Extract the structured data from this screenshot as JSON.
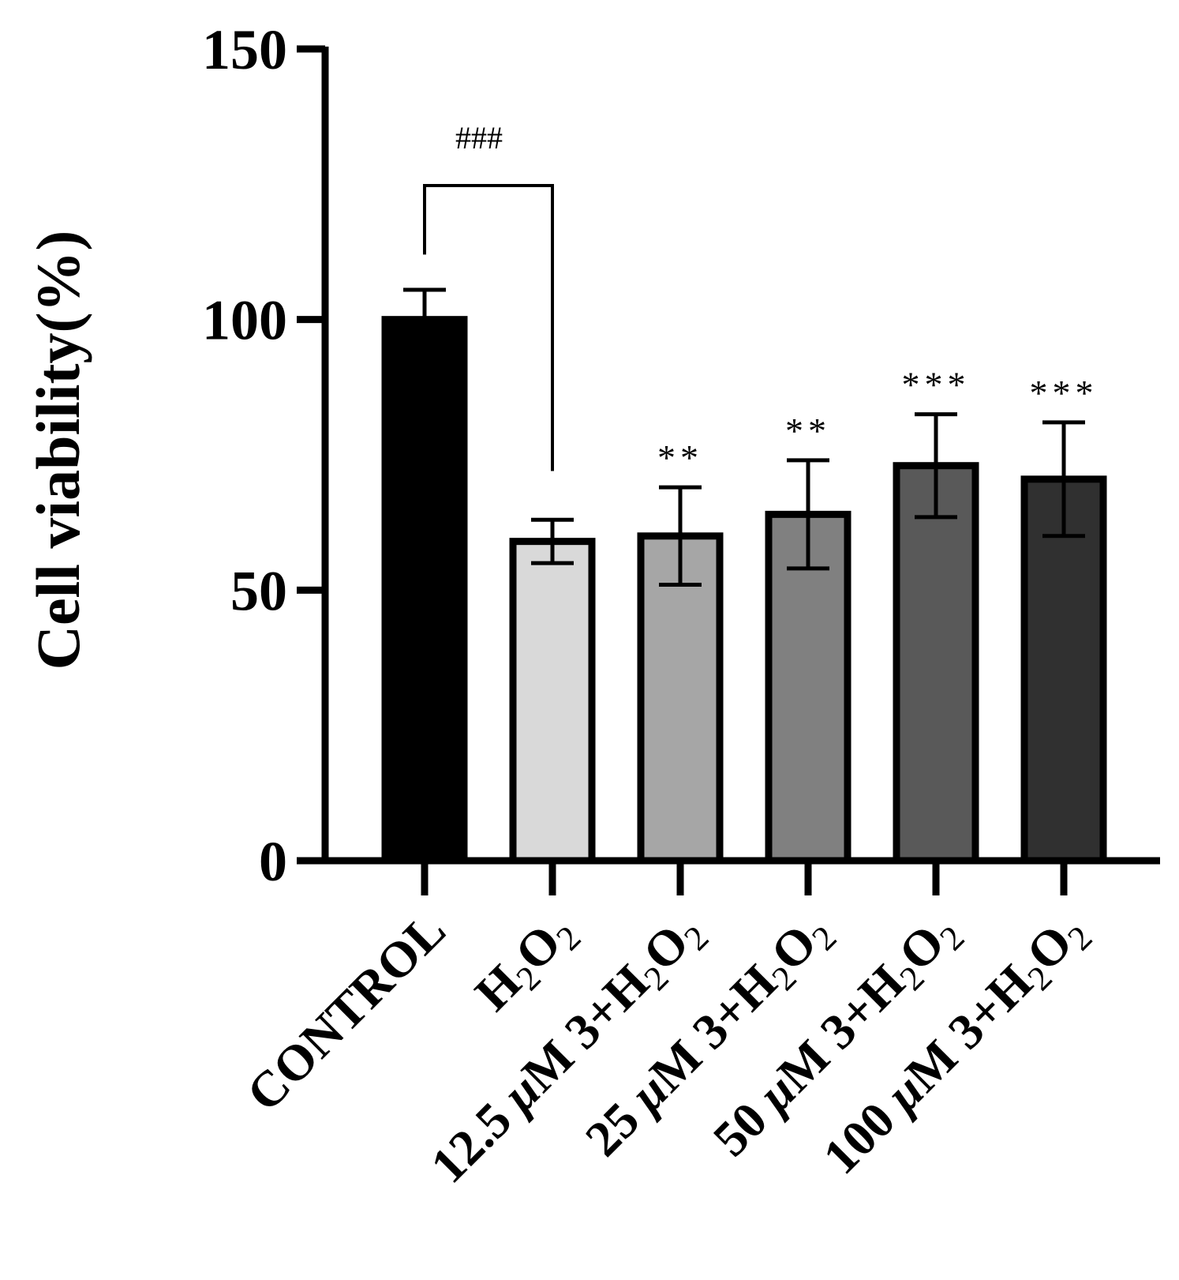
{
  "chart_data": {
    "type": "bar",
    "ylabel": "Cell viability(%)",
    "ylim": [
      0,
      150
    ],
    "yticks": [
      0,
      50,
      100,
      150
    ],
    "categories": [
      {
        "main": "CONTROL",
        "sub": ""
      },
      {
        "main": "H",
        "sub": "2",
        "mid": "O",
        "sub2": "2"
      },
      {
        "prefix": "12.5 ",
        "mu": "μ",
        "rest": "M 3+H",
        "sub": "2",
        "mid": "O",
        "sub2": "2"
      },
      {
        "prefix": "25 ",
        "mu": "μ",
        "rest": "M 3+H",
        "sub": "2",
        "mid": "O",
        "sub2": "2"
      },
      {
        "prefix": "50 ",
        "mu": "μ",
        "rest": "M 3+H",
        "sub": "2",
        "mid": "O",
        "sub2": "2"
      },
      {
        "prefix": "100 ",
        "mu": "μ",
        "rest": "M 3+H",
        "sub": "2",
        "mid": "O",
        "sub2": "2"
      }
    ],
    "values": [
      100,
      59,
      60,
      64,
      73,
      70.5
    ],
    "errors": [
      5.5,
      4,
      9,
      10,
      9.5,
      10.5
    ],
    "colors": [
      "#000000",
      "#d9d9d9",
      "#a6a6a6",
      "#808080",
      "#595959",
      "#303030"
    ],
    "significance": [
      "",
      "",
      "**",
      "**",
      "***",
      "***"
    ],
    "comparison": {
      "from": 0,
      "to": 1,
      "label": "###"
    }
  }
}
